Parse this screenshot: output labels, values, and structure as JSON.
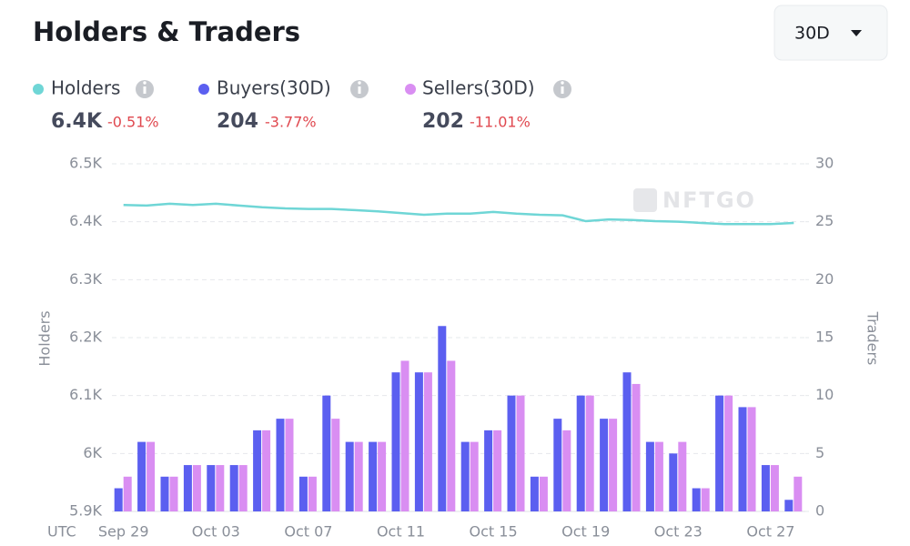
{
  "header": {
    "title": "Holders & Traders"
  },
  "controls": {
    "range": "30D"
  },
  "chart_data": {
    "type": "bar",
    "categories": [
      "Sep 29",
      null,
      null,
      null,
      "Oct 03",
      null,
      null,
      null,
      "Oct 07",
      null,
      null,
      null,
      "Oct 11",
      null,
      null,
      null,
      "Oct 15",
      null,
      null,
      null,
      "Oct 19",
      null,
      null,
      null,
      "Oct 23",
      null,
      null,
      null,
      "Oct 27",
      null
    ],
    "series": [
      {
        "name": "Holders",
        "type": "line",
        "axis": "y",
        "color": "#6fd6d6",
        "values": [
          6429,
          6428,
          6431,
          6429,
          6431,
          6428,
          6425,
          6423,
          6422,
          6422,
          6420,
          6418,
          6415,
          6412,
          6414,
          6414,
          6417,
          6414,
          6412,
          6411,
          6401,
          6404,
          6403,
          6401,
          6400,
          6398,
          6396,
          6396,
          6396,
          6398
        ]
      },
      {
        "name": "Buyers(30D)",
        "type": "bar",
        "axis": "y2",
        "color": "#5b5ff0",
        "values": [
          2,
          6,
          3,
          4,
          4,
          4,
          7,
          8,
          3,
          10,
          6,
          6,
          12,
          12,
          16,
          6,
          7,
          10,
          3,
          8,
          10,
          8,
          12,
          6,
          5,
          2,
          10,
          9,
          4,
          1
        ]
      },
      {
        "name": "Sellers(30D)",
        "type": "bar",
        "axis": "y2",
        "color": "#d98ef2",
        "values": [
          3,
          6,
          3,
          4,
          4,
          4,
          7,
          8,
          3,
          8,
          6,
          6,
          13,
          12,
          13,
          6,
          7,
          10,
          3,
          7,
          10,
          8,
          11,
          6,
          6,
          2,
          10,
          9,
          4,
          3
        ]
      }
    ],
    "legend_stats": [
      {
        "value": "6.4K",
        "change": "-0.51%"
      },
      {
        "value": "204",
        "change": "-3.77%"
      },
      {
        "value": "202",
        "change": "-11.01%"
      }
    ],
    "ylabel": "Holders",
    "y2label": "Traders",
    "xlabel": "UTC",
    "watermark": "NFTGO",
    "ylim": [
      5900,
      6500
    ],
    "yticks": [
      {
        "value": 5900,
        "label": "5.9K"
      },
      {
        "value": 6000,
        "label": "6K"
      },
      {
        "value": 6100,
        "label": "6.1K"
      },
      {
        "value": 6200,
        "label": "6.2K"
      },
      {
        "value": 6300,
        "label": "6.3K"
      },
      {
        "value": 6400,
        "label": "6.4K"
      },
      {
        "value": 6500,
        "label": "6.5K"
      }
    ],
    "y2lim": [
      0,
      30
    ],
    "y2ticks": [
      0,
      5,
      10,
      15,
      20,
      25,
      30
    ],
    "grid": true
  }
}
